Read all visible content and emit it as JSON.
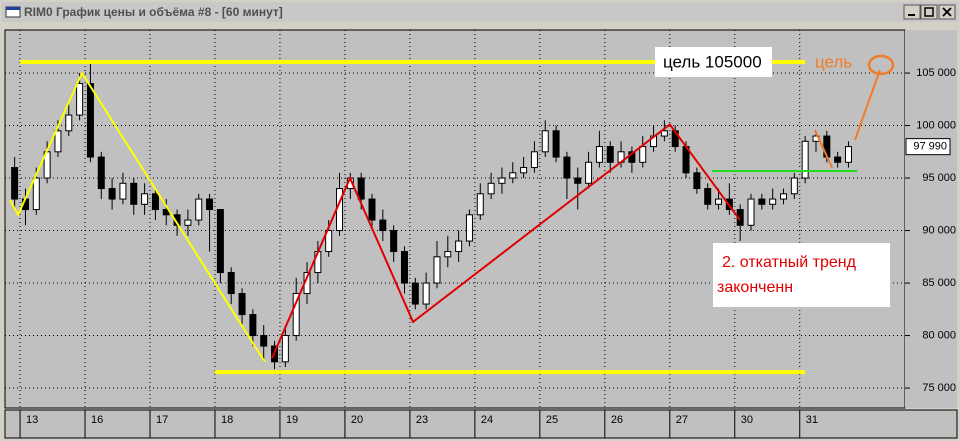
{
  "window": {
    "title": "RIM0 График цены и объёма #8 - [60 минут]"
  },
  "chart_data": {
    "type": "candlestick",
    "open": [
      96000,
      93000,
      92000,
      95000,
      97500,
      99500,
      101000,
      104000,
      97000,
      94000,
      93000,
      94500,
      92500,
      93500,
      92000,
      91500,
      90500,
      91000,
      93000,
      92000,
      86000,
      84000,
      82000,
      80000,
      79000,
      77500,
      80000,
      84000,
      86000,
      88000,
      90000,
      94000,
      95000,
      93000,
      91000,
      90000,
      88000,
      85000,
      83000,
      85000,
      87500,
      88000,
      89000,
      91500,
      93500,
      94500,
      95000,
      95500,
      96000,
      97500,
      99500,
      97000,
      95000,
      94500,
      96500,
      98000,
      96500,
      97500,
      96500,
      98000,
      99000,
      99500,
      98000,
      95500,
      94000,
      92500,
      93000,
      92000,
      90500,
      93000,
      92500,
      93000,
      93500,
      95000,
      98500,
      99000,
      97000,
      96500
    ],
    "high": [
      97000,
      94000,
      96000,
      98500,
      100500,
      102000,
      105000,
      106000,
      97500,
      95000,
      95500,
      95000,
      94500,
      94000,
      93000,
      92000,
      92000,
      93500,
      93500,
      92000,
      86500,
      84500,
      82500,
      81000,
      79500,
      81000,
      85500,
      87000,
      89000,
      91000,
      95500,
      95500,
      95500,
      93500,
      92000,
      90500,
      88500,
      85500,
      86000,
      89000,
      89500,
      90000,
      92000,
      94500,
      95500,
      96000,
      96500,
      97000,
      98500,
      100500,
      100000,
      97500,
      96000,
      97500,
      99500,
      98500,
      98500,
      98000,
      99000,
      100000,
      100500,
      100000,
      98500,
      96000,
      94500,
      94000,
      94500,
      92500,
      93500,
      93500,
      94000,
      94000,
      95500,
      99000,
      99500,
      99500,
      97500,
      98500
    ],
    "low": [
      92000,
      90500,
      91500,
      94500,
      97000,
      99000,
      100500,
      96500,
      93000,
      92000,
      92500,
      91500,
      91500,
      91000,
      90500,
      89500,
      89500,
      90500,
      88000,
      85000,
      83000,
      81000,
      79000,
      77500,
      76800,
      77000,
      79500,
      83000,
      85000,
      87500,
      89500,
      93000,
      92000,
      90000,
      89000,
      87000,
      84000,
      82500,
      82500,
      84500,
      86500,
      87000,
      88500,
      91000,
      93000,
      93500,
      94500,
      95000,
      95500,
      97000,
      96500,
      93000,
      92000,
      94000,
      96000,
      95500,
      96000,
      95500,
      96000,
      97500,
      98500,
      97500,
      95000,
      93500,
      92000,
      92000,
      91500,
      89000,
      90000,
      92000,
      92000,
      92500,
      93000,
      94500,
      97500,
      96500,
      96000,
      96000
    ],
    "close": [
      93000,
      92000,
      95000,
      97500,
      99500,
      101000,
      104000,
      97000,
      94000,
      93000,
      94500,
      92500,
      93500,
      92000,
      91500,
      90500,
      91000,
      93000,
      92000,
      86000,
      84000,
      82000,
      80000,
      79000,
      77500,
      80000,
      84000,
      86000,
      88000,
      90000,
      94000,
      95000,
      93000,
      91000,
      90000,
      88000,
      85000,
      83000,
      85000,
      87500,
      88000,
      89000,
      91500,
      93500,
      94500,
      95000,
      95500,
      96000,
      97500,
      99500,
      97000,
      95000,
      94500,
      96500,
      98000,
      96500,
      97500,
      96500,
      98000,
      99000,
      99500,
      98000,
      95500,
      94000,
      92500,
      93000,
      92000,
      90500,
      93000,
      92500,
      93000,
      93500,
      95000,
      98500,
      99000,
      97000,
      96500,
      97990
    ],
    "up_color": "#ffffff",
    "down_color": "#000000",
    "xlim": [
      -0.39,
      82.72
    ],
    "xticks": [
      {
        "value": 1,
        "label": "13"
      },
      {
        "value": 7,
        "label": "16"
      },
      {
        "value": 13,
        "label": "17"
      },
      {
        "value": 19,
        "label": "18"
      },
      {
        "value": 25,
        "label": "19"
      },
      {
        "value": 31,
        "label": "20"
      },
      {
        "value": 37,
        "label": "23"
      },
      {
        "value": 43,
        "label": "24"
      },
      {
        "value": 49,
        "label": "25"
      },
      {
        "value": 55,
        "label": "26"
      },
      {
        "value": 61,
        "label": "27"
      },
      {
        "value": 67,
        "label": "30"
      },
      {
        "value": 73,
        "label": "31"
      }
    ],
    "ylim": [
      73100,
      109100
    ],
    "yticks": [
      {
        "value": 75000,
        "label": "75 000"
      },
      {
        "value": 80000,
        "label": "80 000"
      },
      {
        "value": 85000,
        "label": "85 000"
      },
      {
        "value": 90000,
        "label": "90 000"
      },
      {
        "value": 95000,
        "label": "95 000"
      },
      {
        "value": 100000,
        "label": "100 000"
      },
      {
        "value": 105000,
        "label": "105 000"
      }
    ],
    "grid": true,
    "last_price": {
      "value": 97990,
      "label": "97 990"
    },
    "lines": [
      {
        "color": "#ffff00",
        "x": [
          0.08,
          0.82,
          6.72,
          23.6
        ],
        "y": [
          92900,
          91500,
          105000,
          77500
        ]
      },
      {
        "color": "#e00000",
        "x": [
          24.27,
          31.47,
          37.29,
          61.0,
          67.48
        ],
        "y": [
          77850,
          95000,
          81300,
          100100,
          91000
        ]
      },
      {
        "color": "#ffff00",
        "x": [
          1,
          73.5
        ],
        "y": [
          106050,
          106050
        ]
      },
      {
        "color": "#ffff00",
        "x": [
          19,
          73.5
        ],
        "y": [
          76520,
          76520
        ]
      },
      {
        "color": "#22dd22",
        "x": [
          64.9,
          78.3
        ],
        "y": [
          95670,
          95670
        ]
      },
      {
        "color": "#f07c2a",
        "x": [
          74.4,
          76.0
        ],
        "y": [
          99570,
          95950
        ]
      },
      {
        "color": "#f07c2a",
        "x": [
          78.1,
          80.4
        ],
        "y": [
          98620,
          105290
        ]
      }
    ],
    "annotations": [
      {
        "text": "цель 105000",
        "color": "#000000"
      },
      {
        "text": "цель",
        "color": "#f07c2a"
      },
      {
        "text": "2. откатный тренд",
        "color": "#e00000"
      },
      {
        "text": "законченн",
        "color": "#e00000"
      }
    ]
  }
}
